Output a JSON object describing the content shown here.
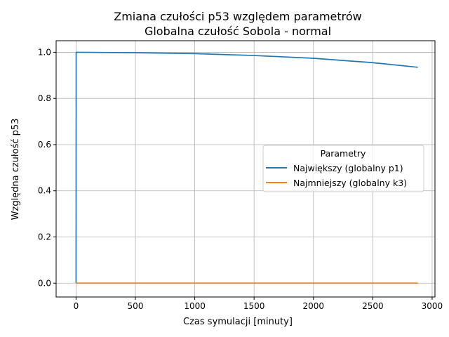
{
  "chart_data": {
    "type": "line",
    "title_line1": "Zmiana czułości p53 względem parametrów",
    "title_line2": "Globalna czułość Sobola - normal",
    "xlabel": "Czas symulacji [minuty]",
    "ylabel": "Względna czułość p53",
    "xlim": [
      -168,
      3024
    ],
    "ylim": [
      -0.06,
      1.05
    ],
    "xticks": [
      0,
      500,
      1000,
      1500,
      2000,
      2500,
      3000
    ],
    "yticks": [
      0.0,
      0.2,
      0.4,
      0.6,
      0.8,
      1.0
    ],
    "xtick_labels": [
      "0",
      "500",
      "1000",
      "1500",
      "2000",
      "2500",
      "3000"
    ],
    "ytick_labels": [
      "0.0",
      "0.2",
      "0.4",
      "0.6",
      "0.8",
      "1.0"
    ],
    "grid": true,
    "legend": {
      "title": "Parametry",
      "placement": "center-right"
    },
    "series": [
      {
        "name": "Największy (globalny p1)",
        "color": "#1f77b4",
        "x": [
          0,
          1,
          10,
          500,
          1000,
          1500,
          2000,
          2500,
          2880
        ],
        "y": [
          0.0,
          1.0,
          1.0,
          0.998,
          0.994,
          0.986,
          0.974,
          0.955,
          0.935
        ]
      },
      {
        "name": "Najmniejszy (globalny k3)",
        "color": "#ff7f0e",
        "x": [
          0,
          500,
          1000,
          1500,
          2000,
          2500,
          2880
        ],
        "y": [
          0.0,
          0.0,
          0.0,
          0.0,
          0.0,
          0.0,
          0.0
        ]
      }
    ]
  }
}
